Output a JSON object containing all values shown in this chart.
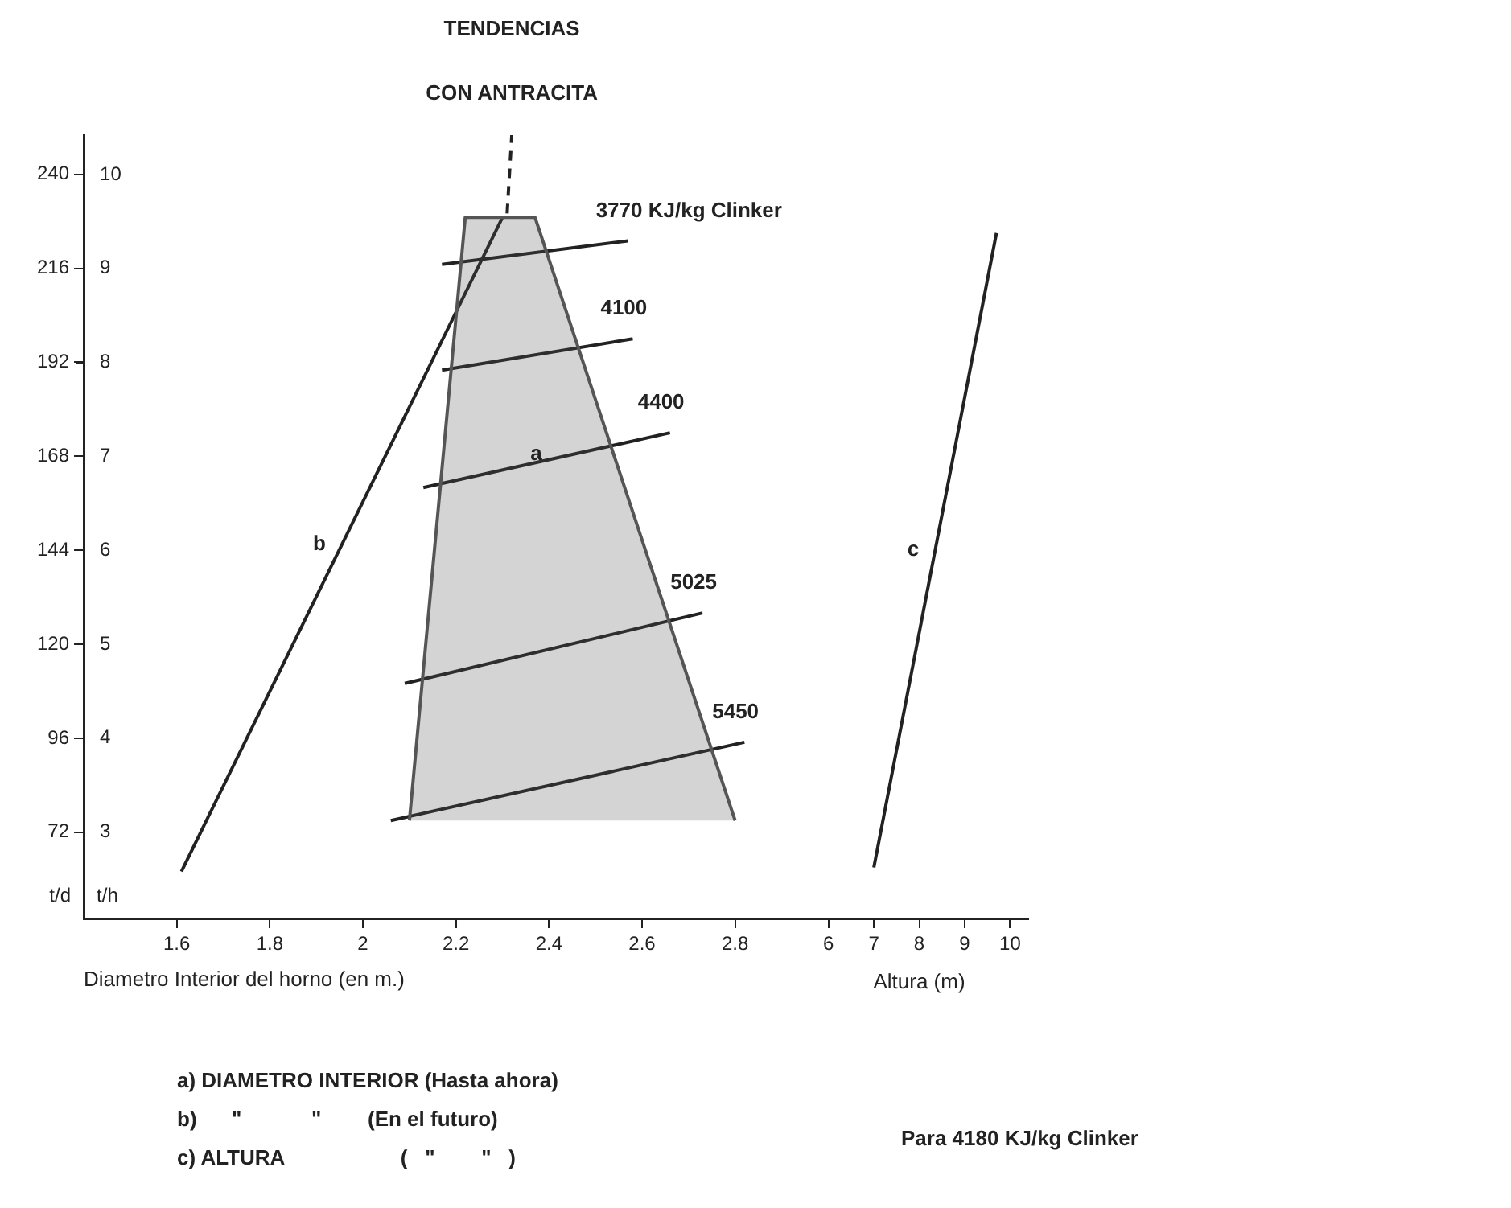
{
  "chart_data": {
    "type": "line",
    "title": "TENDENCIAS",
    "subtitle": "CON ANTRACITA",
    "xlabel": "Diametro Interior del horno (en m.)",
    "x2label": "Altura (m)",
    "ylabel": "t/d",
    "y2label": "t/h",
    "xlim": [
      1.4,
      3.43
    ],
    "xticks": [
      1.6,
      1.8,
      2,
      2.2,
      2.4,
      2.6,
      2.8
    ],
    "x2lim": [
      -10.4,
      10.4
    ],
    "x2ticks": [
      6,
      7,
      8,
      9,
      10
    ],
    "ylim": [
      50,
      250
    ],
    "yticks": [
      72,
      96,
      120,
      144,
      168,
      192,
      216,
      240
    ],
    "y2lim": [
      2.08,
      10.42
    ],
    "y2ticks": [
      3,
      4,
      5,
      6,
      7,
      8,
      9,
      10
    ],
    "grid": false,
    "legend": false,
    "marker": "none",
    "series": [
      {
        "name": "a",
        "type": "area",
        "color": "#555555",
        "x": [
          2.1,
          2.22,
          2.37,
          2.8
        ],
        "values": [
          75,
          229,
          229,
          75
        ]
      },
      {
        "name": "b",
        "color": "#222222",
        "x": [
          1.61,
          2.3
        ],
        "values": [
          62,
          229
        ]
      },
      {
        "line_style": "dashed",
        "color": "#222222",
        "x": [
          2.31,
          2.32
        ],
        "values": [
          230,
          250
        ]
      },
      {
        "name": "c",
        "axis": "x2",
        "color": "#222222",
        "x": [
          7.0,
          9.7
        ],
        "values": [
          63,
          225
        ]
      },
      {
        "name": "3770 KJ/kg Clinker",
        "color": "#222222",
        "x": [
          2.17,
          2.57
        ],
        "values": [
          217,
          223
        ]
      },
      {
        "name": "4100",
        "color": "#222222",
        "x": [
          2.17,
          2.58
        ],
        "values": [
          190,
          198
        ]
      },
      {
        "name": "4400",
        "color": "#222222",
        "x": [
          2.13,
          2.66
        ],
        "values": [
          160,
          174
        ]
      },
      {
        "name": "5025",
        "color": "#222222",
        "x": [
          2.09,
          2.73
        ],
        "values": [
          110,
          128
        ]
      },
      {
        "name": "5450",
        "color": "#222222",
        "x": [
          2.06,
          2.82
        ],
        "values": [
          75,
          95
        ]
      }
    ],
    "annotations": [
      "a) DIAMETRO INTERIOR (Hasta ahora)",
      "b)      \"            \"        (En el futuro)",
      "c) ALTURA                    (   \"        \"   )",
      "Para 4180 KJ/kg Clinker"
    ]
  }
}
